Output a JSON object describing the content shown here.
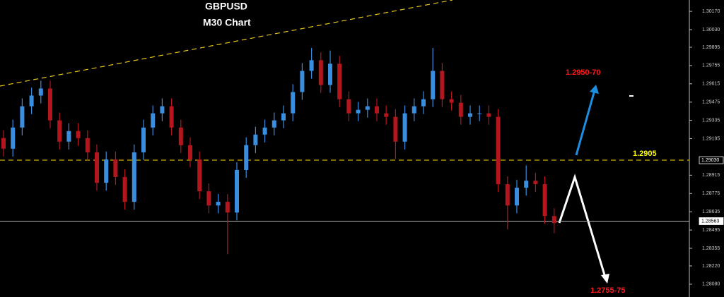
{
  "chart_data": {
    "type": "candlestick",
    "title": "GBPUSD",
    "subtitle": "M30 Chart",
    "up_color": "#3a8ee0",
    "down_color": "#b3161c",
    "ylim": [
      1.27982,
      1.30257
    ],
    "yticks": [
      {
        "value": 1.3017,
        "label": "1.30170"
      },
      {
        "value": 1.3003,
        "label": "1.30030"
      },
      {
        "value": 1.29895,
        "label": "1.29895"
      },
      {
        "value": 1.29755,
        "label": "1.29755"
      },
      {
        "value": 1.29615,
        "label": "1.29615"
      },
      {
        "value": 1.29475,
        "label": "1.29475"
      },
      {
        "value": 1.29335,
        "label": "1.29335"
      },
      {
        "value": 1.29195,
        "label": "1.29195"
      },
      {
        "value": 1.28915,
        "label": "1.28915"
      },
      {
        "value": 1.28775,
        "label": "1.28775"
      },
      {
        "value": 1.28635,
        "label": "1.28635"
      },
      {
        "value": 1.28495,
        "label": "1.28495"
      },
      {
        "value": 1.28355,
        "label": "1.28355"
      },
      {
        "value": 1.2822,
        "label": "1.28220"
      },
      {
        "value": 1.2808,
        "label": "1.28080"
      }
    ],
    "level_lines": [
      {
        "value": 1.2903,
        "label": "1.29030",
        "color": "#ffd700"
      },
      {
        "value": 1.28563,
        "label": "1.28563",
        "color": "#b0b0b0"
      }
    ],
    "annotations": [
      {
        "text": "1.2950-70",
        "color": "#ff1a1a"
      },
      {
        "text": "1.2755-75",
        "color": "#ff1a1a"
      },
      {
        "text": "1.2905",
        "color": "#ffff00"
      }
    ],
    "open": [
      1.292,
      1.29118,
      1.2928,
      1.29443,
      1.29525,
      1.29579,
      1.29335,
      1.29172,
      1.29253,
      1.29199,
      1.2909,
      1.28857,
      1.29036,
      1.28901,
      1.28711,
      1.2909,
      1.2928,
      1.29389,
      1.29443,
      1.2928,
      1.29145,
      1.29036,
      1.28792,
      1.28683,
      1.28711,
      1.28629,
      1.28955,
      1.29145,
      1.29226,
      1.2928,
      1.29335,
      1.29389,
      1.29552,
      1.29714,
      1.29796,
      1.29606,
      1.29769,
      1.29497,
      1.29389,
      1.29416,
      1.29443,
      1.29389,
      1.29362,
      1.29172,
      1.29389,
      1.29443,
      1.29497,
      1.29714,
      1.29497,
      1.2947,
      1.29362,
      1.29389,
      1.29389,
      1.29362,
      1.28846,
      1.28683,
      1.28819,
      1.28873,
      1.28846,
      1.28602
    ],
    "high": [
      1.2926,
      1.2934,
      1.29503,
      1.29585,
      1.29639,
      1.29639,
      1.29395,
      1.29313,
      1.29313,
      1.29259,
      1.2915,
      1.29096,
      1.29096,
      1.28961,
      1.2915,
      1.2934,
      1.29449,
      1.29503,
      1.29503,
      1.2934,
      1.29205,
      1.29096,
      1.28852,
      1.28771,
      1.28771,
      1.29015,
      1.29205,
      1.29286,
      1.2934,
      1.29395,
      1.29449,
      1.29612,
      1.29774,
      1.2989,
      1.29856,
      1.2987,
      1.29829,
      1.29557,
      1.29476,
      1.29503,
      1.29503,
      1.29449,
      1.29422,
      1.29449,
      1.29503,
      1.29557,
      1.2989,
      1.29774,
      1.29557,
      1.2953,
      1.29449,
      1.29449,
      1.29449,
      1.29422,
      1.28906,
      1.28879,
      1.2899,
      1.28933,
      1.28906,
      1.28662
    ],
    "low": [
      1.29058,
      1.29058,
      1.2922,
      1.29383,
      1.29465,
      1.29275,
      1.29112,
      1.29112,
      1.29139,
      1.2903,
      1.28797,
      1.28797,
      1.28841,
      1.28651,
      1.28651,
      1.2903,
      1.2922,
      1.29329,
      1.2922,
      1.29085,
      1.28976,
      1.28732,
      1.28623,
      1.28623,
      1.2831,
      1.28569,
      1.28895,
      1.29085,
      1.29166,
      1.2922,
      1.29275,
      1.29329,
      1.29492,
      1.29654,
      1.29546,
      1.29546,
      1.29437,
      1.29329,
      1.29329,
      1.29356,
      1.29329,
      1.29302,
      1.2904,
      1.29112,
      1.29329,
      1.29383,
      1.29437,
      1.29437,
      1.2941,
      1.29302,
      1.29302,
      1.29329,
      1.29302,
      1.28786,
      1.285,
      1.28623,
      1.28759,
      1.28786,
      1.28542,
      1.2847
    ],
    "close": [
      1.29118,
      1.2928,
      1.29443,
      1.29525,
      1.29579,
      1.29335,
      1.29172,
      1.29253,
      1.29199,
      1.2909,
      1.28857,
      1.29036,
      1.28901,
      1.28711,
      1.2909,
      1.2928,
      1.29389,
      1.29443,
      1.2928,
      1.29145,
      1.29036,
      1.28792,
      1.28683,
      1.28711,
      1.28629,
      1.28955,
      1.29145,
      1.29226,
      1.2928,
      1.29335,
      1.29389,
      1.29552,
      1.29714,
      1.29796,
      1.29606,
      1.29769,
      1.29497,
      1.29389,
      1.29416,
      1.29443,
      1.29389,
      1.29362,
      1.29172,
      1.29389,
      1.29443,
      1.29497,
      1.29714,
      1.29497,
      1.2947,
      1.29362,
      1.29389,
      1.29389,
      1.29362,
      1.28846,
      1.28683,
      1.28819,
      1.28873,
      1.28846,
      1.28602,
      1.28548
    ]
  }
}
